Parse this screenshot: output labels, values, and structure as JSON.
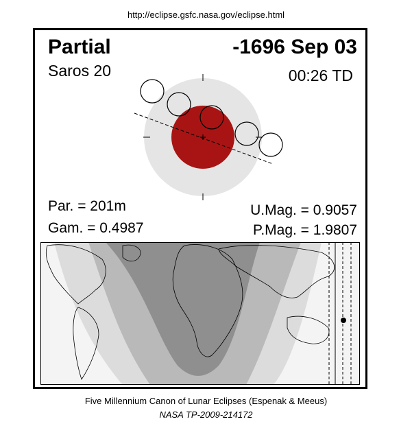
{
  "header": {
    "url": "http://eclipse.gsfc.nasa.gov/eclipse.html"
  },
  "eclipse": {
    "type": "Partial",
    "date": "-1696 Sep 03",
    "saros_label": "Saros  20",
    "time": "00:26 TD",
    "par": "Par. = 201m",
    "gam": "Gam. = 0.4987",
    "umag": "U.Mag. = 0.9057",
    "pmag": "P.Mag. = 1.9807"
  },
  "colors": {
    "umbra": "#a81414",
    "penumbra": "#e5e5e5",
    "zone_dark": "#8c8c8c",
    "zone_mid": "#b4b4b4",
    "zone_light": "#d9d9d9",
    "zone_faint": "#f0f0f0"
  },
  "footer": {
    "canon": "Five Millennium Canon of Lunar Eclipses (Espenak & Meeus)",
    "pub": "NASA TP-2009-214172"
  }
}
